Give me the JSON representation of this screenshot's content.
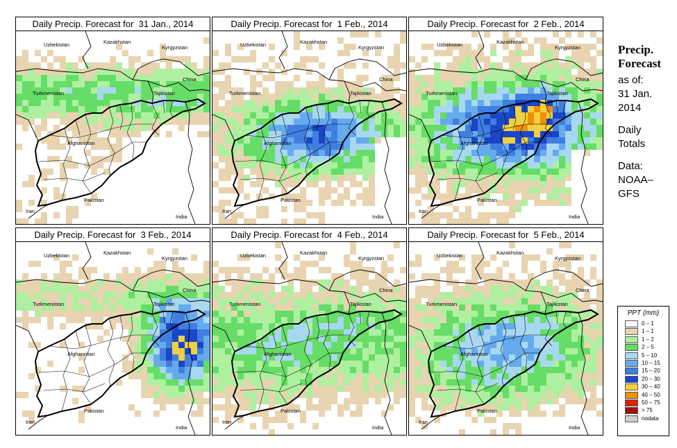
{
  "panels": [
    {
      "title": "Daily Precip. Forecast for  31 Jan., 2014",
      "seed": 11,
      "mode": "north"
    },
    {
      "title": "Daily Precip. Forecast for  1 Feb., 2014",
      "seed": 23,
      "mode": "central"
    },
    {
      "title": "Daily Precip. Forecast for  2 Feb., 2014",
      "seed": 37,
      "mode": "heavy"
    },
    {
      "title": "Daily Precip. Forecast for  3 Feb., 2014",
      "seed": 41,
      "mode": "east"
    },
    {
      "title": "Daily Precip. Forecast for  4 Feb., 2014",
      "seed": 53,
      "mode": "light"
    },
    {
      "title": "Daily Precip. Forecast for  5 Feb., 2014",
      "seed": 67,
      "mode": "moderate"
    }
  ],
  "country_labels": [
    "Uzbekistan",
    "Kazakhstan",
    "Kyrgyzstan",
    "China",
    "Turkmenistan",
    "Tajikistan",
    "Afghanistan",
    "Iran",
    "Pakistan",
    "India"
  ],
  "side": {
    "title_line1": "Precip.",
    "title_line2": "Forecast",
    "asof_label": "as of:",
    "date_line1": "31 Jan.",
    "date_line2": "2014",
    "daily_line1": "Daily",
    "daily_line2": "Totals",
    "data_line1": "Data:",
    "data_line2": "NOAA–",
    "data_line3": "GFS"
  },
  "legend": {
    "title": "PPT (mm)",
    "classes": [
      {
        "label": "0 – 1",
        "color": "#ffffff"
      },
      {
        "label": "1 – 1",
        "color": "#e8d4b0"
      },
      {
        "label": "1 – 2",
        "color": "#aef0a0"
      },
      {
        "label": "2 – 5",
        "color": "#66dd66"
      },
      {
        "label": "5 – 10",
        "color": "#a8d8f0"
      },
      {
        "label": "10 – 15",
        "color": "#66aaee"
      },
      {
        "label": "15 – 20",
        "color": "#3f7fe0"
      },
      {
        "label": "20 – 30",
        "color": "#1b46c8"
      },
      {
        "label": "30 – 40",
        "color": "#f0d040"
      },
      {
        "label": "40 – 50",
        "color": "#f09000"
      },
      {
        "label": "50 – 75",
        "color": "#e02000"
      },
      {
        "label": "> 75",
        "color": "#a01010"
      },
      {
        "label": "nodata",
        "color": "#cfcfcf"
      }
    ]
  }
}
